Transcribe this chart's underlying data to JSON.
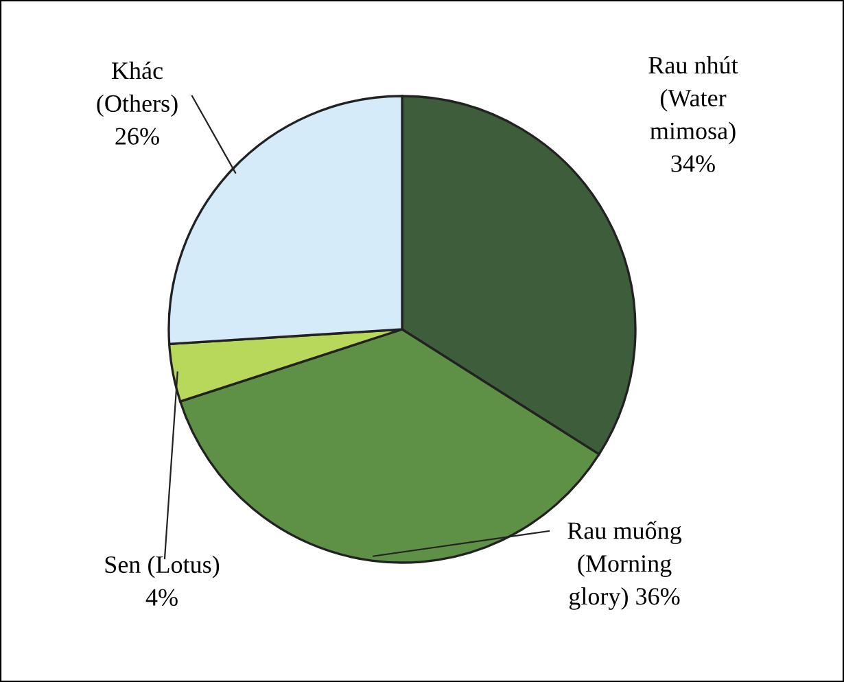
{
  "chart_data": {
    "type": "pie",
    "categories": [
      "Rau nhút\n(Water\nmimosa)",
      "Rau muống\n(Morning\nglory)",
      "Sen (Lotus)",
      "Khác\n(Others)"
    ],
    "values": [
      34,
      36,
      4,
      26
    ],
    "value_labels": [
      "34%",
      "36%",
      "4%",
      "26%"
    ],
    "colors": [
      "#3e5e3b",
      "#5e9146",
      "#b8d85c",
      "#d5ebfa"
    ]
  }
}
